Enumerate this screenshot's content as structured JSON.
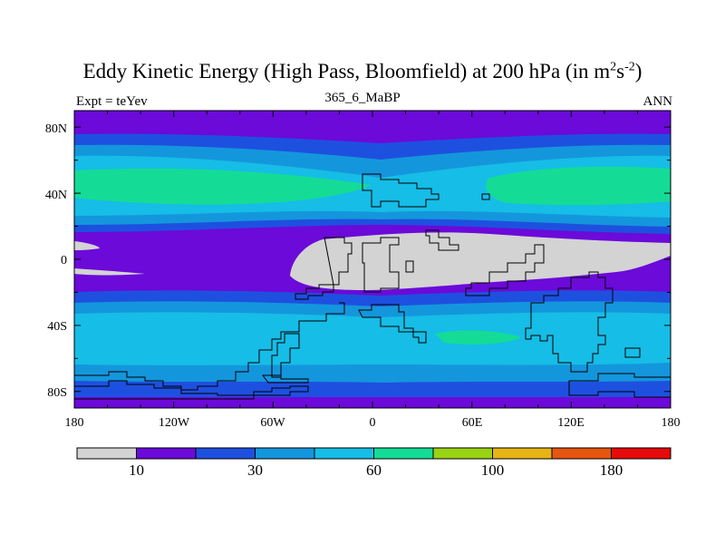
{
  "title": {
    "main": "Eddy Kinetic Energy (High Pass, Bloomfield) at 200 hPa (in m",
    "unit_sup1": "2",
    "unit_mid": "s",
    "unit_sup2": "-2",
    "unit_close": ")"
  },
  "left_label": "Expt = teYev",
  "center_label": "365_6_MaBP",
  "right_label": "ANN",
  "map": {
    "lon_ticks": [
      "180",
      "120W",
      "60W",
      "0",
      "60E",
      "120E",
      "180"
    ],
    "lat_ticks": [
      "80N",
      "40N",
      "0",
      "40S",
      "80S"
    ],
    "lon_range": [
      -180,
      180
    ],
    "lat_range": [
      -90,
      90
    ]
  },
  "colorbar": {
    "colors": [
      "#d3d3d3",
      "#6b0ad9",
      "#1e50e0",
      "#1496dc",
      "#16bde6",
      "#14dc96",
      "#9ad214",
      "#e6b414",
      "#e6560f",
      "#e60a0a"
    ],
    "labels": [
      {
        "text": "10",
        "boundary": 1
      },
      {
        "text": "30",
        "boundary": 3
      },
      {
        "text": "60",
        "boundary": 5
      },
      {
        "text": "100",
        "boundary": 7
      },
      {
        "text": "180",
        "boundary": 9
      }
    ]
  }
}
